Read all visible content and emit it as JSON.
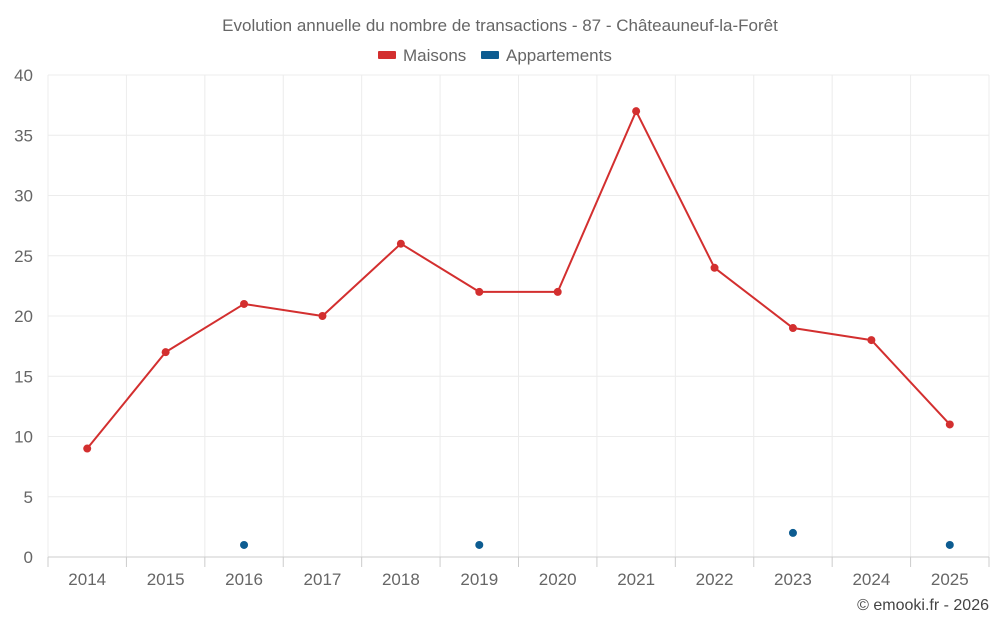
{
  "chart_data": {
    "type": "line",
    "title": "Evolution annuelle du nombre de transactions - 87 - Châteauneuf-la-Forêt",
    "categories": [
      "2014",
      "2015",
      "2016",
      "2017",
      "2018",
      "2019",
      "2020",
      "2021",
      "2022",
      "2023",
      "2024",
      "2025"
    ],
    "ylim": [
      0,
      40
    ],
    "yticks": [
      0,
      5,
      10,
      15,
      20,
      25,
      30,
      35,
      40
    ],
    "grid": true,
    "legend_position": "top-center",
    "xlabel": "",
    "ylabel": "",
    "series": [
      {
        "name": "Maisons",
        "color": "#d32f2f",
        "line": true,
        "values": [
          9,
          17,
          21,
          20,
          26,
          22,
          22,
          37,
          24,
          19,
          18,
          11
        ]
      },
      {
        "name": "Appartements",
        "color": "#0d5c91",
        "line": false,
        "values": [
          null,
          null,
          1,
          null,
          null,
          1,
          null,
          null,
          null,
          2,
          null,
          1
        ]
      }
    ],
    "credit": "© emooki.fr - 2026"
  }
}
